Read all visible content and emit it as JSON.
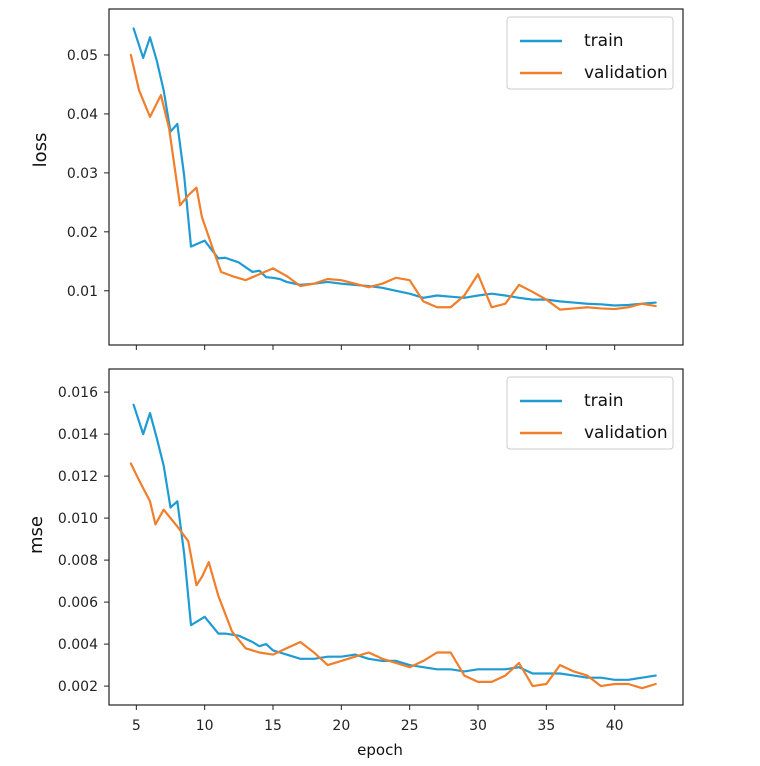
{
  "chart_data": [
    {
      "type": "line",
      "title": "",
      "xlabel": "",
      "ylabel": "loss",
      "xlim": [
        3.0,
        45.0
      ],
      "ylim": [
        0.0008,
        0.0578
      ],
      "xticks": [
        5,
        10,
        15,
        20,
        25,
        30,
        35,
        40
      ],
      "show_xtick_labels": false,
      "yticks": [
        0.01,
        0.02,
        0.03,
        0.04,
        0.05
      ],
      "ytick_labels": [
        "0.01",
        "0.02",
        "0.03",
        "0.04",
        "0.05"
      ],
      "grid": false,
      "legend": "top-right",
      "series": [
        {
          "name": "train",
          "color": "#1f9bd4",
          "x": [
            4.8,
            5.5,
            6.0,
            6.5,
            7.0,
            7.5,
            8.0,
            8.5,
            9.0,
            10.0,
            11.0,
            11.5,
            12.5,
            13.5,
            14.0,
            14.5,
            15.0,
            15.5,
            16.0,
            17.0,
            18.0,
            19.0,
            20.0,
            21.0,
            22.0,
            23.0,
            24.0,
            25.0,
            26.0,
            27.0,
            28.0,
            29.0,
            30.0,
            31.0,
            32.0,
            33.0,
            34.0,
            35.0,
            36.0,
            37.0,
            38.0,
            39.0,
            40.0,
            41.0,
            42.0,
            43.0
          ],
          "values": [
            0.0545,
            0.0495,
            0.053,
            0.049,
            0.044,
            0.037,
            0.0383,
            0.0295,
            0.0175,
            0.0185,
            0.0155,
            0.0156,
            0.0148,
            0.0132,
            0.0134,
            0.0123,
            0.0122,
            0.012,
            0.0115,
            0.011,
            0.0112,
            0.0115,
            0.0112,
            0.011,
            0.0108,
            0.0105,
            0.01,
            0.0095,
            0.0088,
            0.0092,
            0.009,
            0.0088,
            0.0092,
            0.0095,
            0.0092,
            0.0088,
            0.0085,
            0.0085,
            0.0082,
            0.008,
            0.0078,
            0.0077,
            0.0075,
            0.0076,
            0.0078,
            0.008
          ]
        },
        {
          "name": "validation",
          "color": "#f07e2a",
          "x": [
            4.6,
            5.2,
            6.0,
            6.8,
            7.4,
            8.2,
            8.8,
            9.4,
            9.8,
            10.5,
            11.2,
            12.0,
            13.0,
            14.0,
            15.0,
            16.0,
            17.0,
            18.0,
            19.0,
            20.0,
            21.0,
            22.0,
            23.0,
            24.0,
            25.0,
            26.0,
            27.0,
            28.0,
            29.0,
            30.0,
            31.0,
            32.0,
            33.0,
            34.0,
            35.0,
            36.0,
            37.0,
            38.0,
            39.0,
            40.0,
            41.0,
            42.0,
            43.0
          ],
          "values": [
            0.05,
            0.044,
            0.0395,
            0.0432,
            0.0375,
            0.0245,
            0.0262,
            0.0275,
            0.0225,
            0.0178,
            0.0132,
            0.0125,
            0.0118,
            0.0128,
            0.0138,
            0.0125,
            0.0108,
            0.0112,
            0.012,
            0.0118,
            0.0112,
            0.0106,
            0.0112,
            0.0122,
            0.0118,
            0.0082,
            0.0072,
            0.0072,
            0.0092,
            0.0128,
            0.0072,
            0.0078,
            0.011,
            0.0098,
            0.0085,
            0.0068,
            0.007,
            0.0072,
            0.007,
            0.0069,
            0.0072,
            0.0078,
            0.0074
          ]
        }
      ]
    },
    {
      "type": "line",
      "title": "",
      "xlabel": "epoch",
      "ylabel": "mse",
      "xlim": [
        3.0,
        45.0
      ],
      "ylim": [
        0.0011,
        0.0171
      ],
      "xticks": [
        5,
        10,
        15,
        20,
        25,
        30,
        35,
        40
      ],
      "xtick_labels": [
        "5",
        "10",
        "15",
        "20",
        "25",
        "30",
        "35",
        "40"
      ],
      "show_xtick_labels": true,
      "yticks": [
        0.002,
        0.004,
        0.006,
        0.008,
        0.01,
        0.012,
        0.014,
        0.016
      ],
      "ytick_labels": [
        "0.002",
        "0.004",
        "0.006",
        "0.008",
        "0.010",
        "0.012",
        "0.014",
        "0.016"
      ],
      "grid": false,
      "legend": "top-right",
      "series": [
        {
          "name": "train",
          "color": "#1f9bd4",
          "x": [
            4.8,
            5.5,
            6.0,
            6.5,
            7.0,
            7.5,
            8.0,
            8.5,
            9.0,
            10.0,
            11.0,
            11.5,
            12.5,
            13.5,
            14.0,
            14.5,
            15.0,
            15.5,
            16.0,
            17.0,
            18.0,
            19.0,
            20.0,
            21.0,
            22.0,
            23.0,
            24.0,
            25.0,
            26.0,
            27.0,
            28.0,
            29.0,
            30.0,
            31.0,
            32.0,
            33.0,
            34.0,
            35.0,
            36.0,
            37.0,
            38.0,
            39.0,
            40.0,
            41.0,
            42.0,
            43.0
          ],
          "values": [
            0.0154,
            0.014,
            0.015,
            0.0138,
            0.0125,
            0.0105,
            0.0108,
            0.0083,
            0.0049,
            0.0053,
            0.0045,
            0.0045,
            0.0044,
            0.0041,
            0.0039,
            0.004,
            0.0037,
            0.0036,
            0.0035,
            0.0033,
            0.0033,
            0.0034,
            0.0034,
            0.0035,
            0.0033,
            0.0032,
            0.0032,
            0.003,
            0.0029,
            0.0028,
            0.0028,
            0.0027,
            0.0028,
            0.0028,
            0.0028,
            0.0029,
            0.0026,
            0.0026,
            0.0026,
            0.0025,
            0.0024,
            0.0024,
            0.0023,
            0.0023,
            0.0024,
            0.0025
          ]
        },
        {
          "name": "validation",
          "color": "#f07e2a",
          "x": [
            4.6,
            5.2,
            6.0,
            6.4,
            7.0,
            8.0,
            8.8,
            9.4,
            9.8,
            10.3,
            11.0,
            12.0,
            13.0,
            14.0,
            15.0,
            16.0,
            17.0,
            18.0,
            19.0,
            20.0,
            21.0,
            22.0,
            23.0,
            24.0,
            25.0,
            26.0,
            27.0,
            28.0,
            29.0,
            30.0,
            31.0,
            32.0,
            33.0,
            34.0,
            35.0,
            36.0,
            37.0,
            38.0,
            39.0,
            40.0,
            41.0,
            42.0,
            43.0
          ],
          "values": [
            0.0126,
            0.0118,
            0.0108,
            0.0097,
            0.0104,
            0.0096,
            0.0089,
            0.0068,
            0.0072,
            0.0079,
            0.0063,
            0.0046,
            0.0038,
            0.0036,
            0.0035,
            0.0038,
            0.0041,
            0.0036,
            0.003,
            0.0032,
            0.0034,
            0.0036,
            0.0033,
            0.0031,
            0.0029,
            0.0032,
            0.0036,
            0.0036,
            0.0025,
            0.0022,
            0.0022,
            0.0025,
            0.0031,
            0.002,
            0.0021,
            0.003,
            0.0027,
            0.0025,
            0.002,
            0.0021,
            0.0021,
            0.0019,
            0.0021
          ]
        }
      ]
    }
  ]
}
